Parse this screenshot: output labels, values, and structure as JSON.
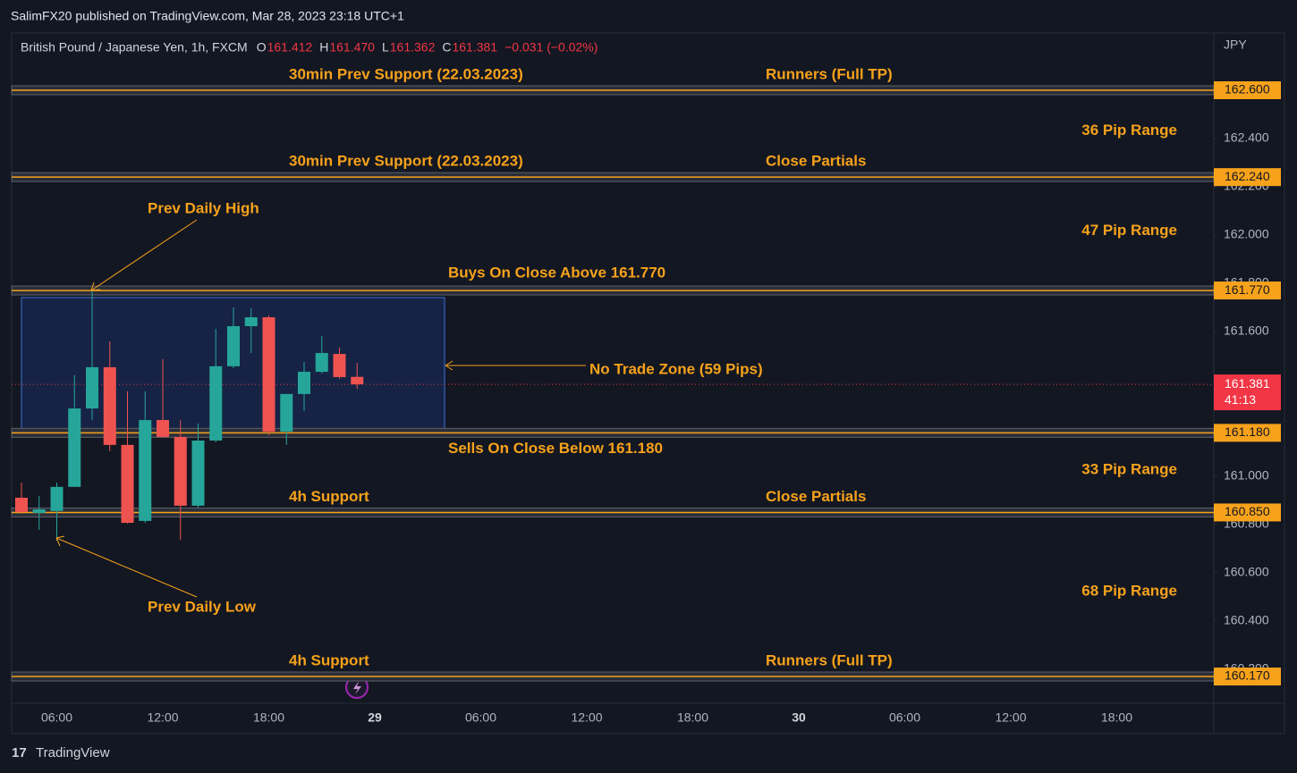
{
  "header": {
    "publisher": "SalimFX20 published on TradingView.com, Mar 28, 2023 23:18 UTC+1",
    "brand": "TradingView"
  },
  "chart_data": {
    "type": "candlestick",
    "title": "British Pound / Japanese Yen, 1h, FXCM",
    "ohlc_legend": [
      {
        "key": "O",
        "text": "161.412"
      },
      {
        "key": "H",
        "text": "161.470"
      },
      {
        "key": "L",
        "text": "161.362"
      },
      {
        "key": "C",
        "text": "161.381"
      }
    ],
    "change": "−0.031 (−0.02%)",
    "currency": "JPY",
    "up_color": "#26a69a",
    "down_color": "#ef5350",
    "level_color": "#f7a21b",
    "categories": [
      null,
      null,
      "06:00",
      null,
      null,
      null,
      null,
      null,
      "12:00",
      null,
      null,
      null,
      null,
      null,
      "18:00",
      null,
      null,
      null,
      null,
      null,
      "29",
      null,
      null,
      null,
      null,
      null,
      "06:00",
      null,
      null,
      null,
      null,
      null,
      "12:00",
      null,
      null,
      null,
      null,
      null,
      "18:00",
      null,
      null,
      null,
      null,
      null,
      "30",
      null,
      null,
      null,
      null,
      null,
      "06:00",
      null,
      null,
      null,
      null,
      null,
      "12:00",
      null,
      null,
      null,
      null,
      null,
      "18:00",
      null,
      null,
      null,
      null,
      null
    ],
    "open": [
      160.911,
      160.848,
      160.856,
      160.956,
      161.281,
      161.452,
      161.13,
      160.815,
      161.233,
      161.163,
      160.878,
      161.148,
      161.456,
      161.622,
      161.659,
      161.185,
      161.341,
      161.433,
      161.507,
      161.412,
      null,
      null,
      null,
      null,
      null,
      null,
      null,
      null,
      null,
      null,
      null,
      null,
      null,
      null,
      null,
      null,
      null,
      null,
      null,
      null,
      null,
      null,
      null,
      null,
      null,
      null,
      null,
      null,
      null,
      null,
      null,
      null,
      null,
      null,
      null,
      null,
      null,
      null,
      null,
      null,
      null,
      null,
      null,
      null,
      null,
      null,
      null,
      null
    ],
    "high": [
      160.974,
      160.919,
      160.974,
      161.419,
      161.77,
      161.559,
      161.352,
      161.352,
      161.485,
      161.233,
      161.219,
      161.611,
      161.7,
      161.696,
      161.667,
      161.341,
      161.474,
      161.581,
      161.533,
      161.47,
      null,
      null,
      null,
      null,
      null,
      null,
      null,
      null,
      null,
      null,
      null,
      null,
      null,
      null,
      null,
      null,
      null,
      null,
      null,
      null,
      null,
      null,
      null,
      null,
      null,
      null,
      null,
      null,
      null,
      null,
      null,
      null,
      null,
      null,
      null,
      null,
      null,
      null,
      null,
      null,
      null,
      null,
      null,
      null,
      null,
      null,
      null,
      null
    ],
    "low": [
      160.844,
      160.778,
      160.733,
      160.956,
      161.233,
      161.104,
      160.804,
      160.807,
      161.159,
      160.737,
      160.87,
      161.141,
      161.448,
      161.511,
      161.17,
      161.13,
      161.27,
      161.426,
      161.404,
      161.362,
      null,
      null,
      null,
      null,
      null,
      null,
      null,
      null,
      null,
      null,
      null,
      null,
      null,
      null,
      null,
      null,
      null,
      null,
      null,
      null,
      null,
      null,
      null,
      null,
      null,
      null,
      null,
      null,
      null,
      null,
      null,
      null,
      null,
      null,
      null,
      null,
      null,
      null,
      null,
      null,
      null,
      null,
      null,
      null,
      null,
      null,
      null,
      null
    ],
    "close": [
      160.852,
      160.863,
      160.956,
      161.281,
      161.452,
      161.13,
      160.807,
      161.233,
      161.163,
      160.878,
      161.148,
      161.456,
      161.622,
      161.659,
      161.185,
      161.341,
      161.433,
      161.511,
      161.411,
      161.381,
      null,
      null,
      null,
      null,
      null,
      null,
      null,
      null,
      null,
      null,
      null,
      null,
      null,
      null,
      null,
      null,
      null,
      null,
      null,
      null,
      null,
      null,
      null,
      null,
      null,
      null,
      null,
      null,
      null,
      null,
      null,
      null,
      null,
      null,
      null,
      null,
      null,
      null,
      null,
      null,
      null,
      null,
      null,
      null,
      null,
      null,
      null,
      null
    ],
    "ylim": [
      160.059,
      162.837
    ],
    "yticks": [
      {
        "value": 162.4,
        "label": "162.400"
      },
      {
        "value": 162.2,
        "label": "162.200"
      },
      {
        "value": 162.0,
        "label": "162.000"
      },
      {
        "value": 161.8,
        "label": "161.800"
      },
      {
        "value": 161.6,
        "label": "161.600"
      },
      {
        "value": 161.0,
        "label": "161.000"
      },
      {
        "value": 160.8,
        "label": "160.800"
      },
      {
        "value": 160.6,
        "label": "160.600"
      },
      {
        "value": 160.4,
        "label": "160.400"
      },
      {
        "value": 160.2,
        "label": "160.200"
      }
    ],
    "levels": [
      {
        "value": 162.6,
        "label": "162.600",
        "left_text": "30min Prev Support (22.03.2023)",
        "right_text": "Runners (Full TP)"
      },
      {
        "value": 162.24,
        "label": "162.240",
        "left_text": "30min Prev Support (22.03.2023)",
        "right_text": "Close Partials"
      },
      {
        "value": 161.77,
        "label": "161.770",
        "text": "Buys On Close Above 161.770"
      },
      {
        "value": 161.18,
        "label": "161.180",
        "text": "Sells On Close Below 161.180"
      },
      {
        "value": 160.85,
        "label": "160.850",
        "left_text": "4h Support",
        "right_text": "Close Partials"
      },
      {
        "value": 160.17,
        "label": "160.170",
        "left_text": "4h Support",
        "right_text": "Runners (Full TP)"
      }
    ],
    "ranges": [
      "36 Pip Range",
      "47 Pip Range",
      "33 Pip Range",
      "68 Pip Range"
    ],
    "zone_label": "No Trade Zone (59 Pips)",
    "annotations": [
      "Prev Daily High",
      "Prev Daily Low"
    ],
    "last_price": {
      "value": 161.381,
      "label": "161.381",
      "countdown": "41:13"
    }
  }
}
